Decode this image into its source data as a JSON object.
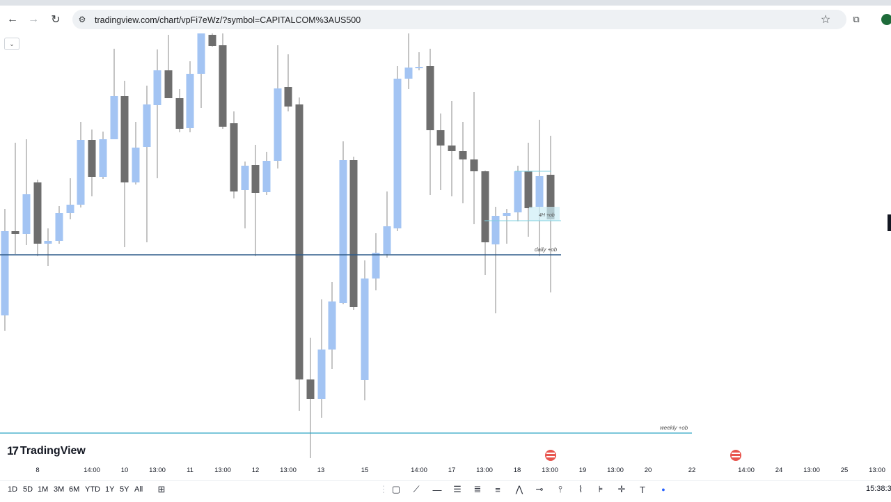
{
  "browser": {
    "url": "tradingview.com/chart/vpFi7eWz/?symbol=CAPITALCOM%3AUS500",
    "back_icon": "back-arrow-icon",
    "forward_icon": "forward-arrow-icon",
    "reload_icon": "reload-icon",
    "site_info_icon": "site-info-icon",
    "bookmark_icon": "star-icon",
    "extensions_icon": "extensions-icon"
  },
  "chart": {
    "brand": "TradingView",
    "candle_colors": {
      "up": "#a3c4f3",
      "down": "#6e6e6e",
      "wick": "#8a8a8a"
    },
    "annotations": {
      "daily": "daily +ob",
      "weekly": "weekly +ob",
      "h4": "4H +ob"
    },
    "line_colors": {
      "daily": "#2f5b8a",
      "weekly": "#2aa3c3"
    },
    "time_labels": [
      "8",
      "14:00",
      "10",
      "13:00",
      "11",
      "13:00",
      "12",
      "13:00",
      "13",
      "15",
      "14:00",
      "17",
      "13:00",
      "18",
      "13:00",
      "19",
      "13:00",
      "20",
      "22",
      "14:00",
      "24",
      "13:00",
      "25",
      "13:00"
    ],
    "event_flag": "us-flag-icon"
  },
  "bottom": {
    "ranges": [
      "1D",
      "5D",
      "1M",
      "3M",
      "6M",
      "YTD",
      "1Y",
      "5Y",
      "All"
    ],
    "goto_icon": "calendar-goto-icon",
    "clock": "15:38:3"
  }
}
